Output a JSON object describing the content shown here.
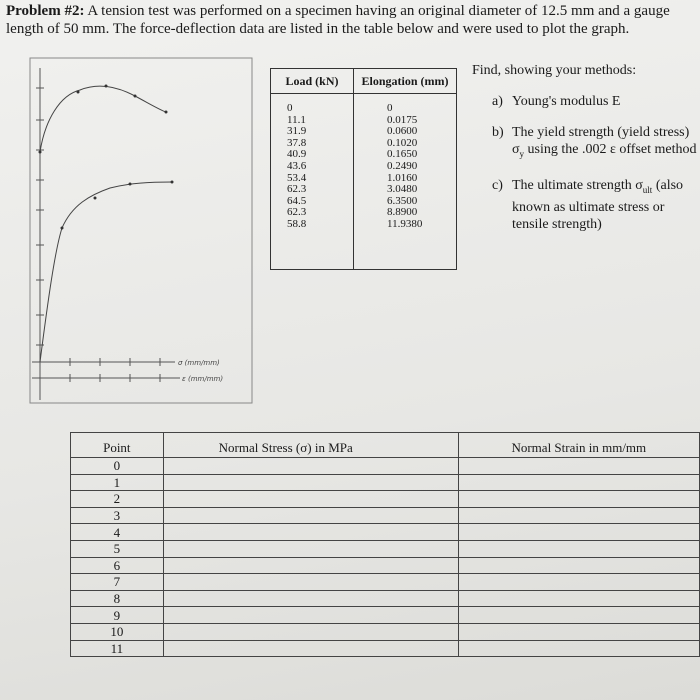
{
  "problem": {
    "label": "Problem #2:",
    "text": "A tension test was performed on a specimen having an original diameter of 12.5 mm and a gauge length of 50 mm. The force-deflection data are listed in the table below and were used to plot the graph."
  },
  "graph": {
    "notes": [
      "σ (mm/mm)",
      "ε (mm/mm)"
    ]
  },
  "data_table": {
    "headers": [
      "Load (kN)",
      "Elongation (mm)"
    ],
    "load": [
      "0",
      "11.1",
      "31.9",
      "37.8",
      "40.9",
      "43.6",
      "53.4",
      "62.3",
      "64.5",
      "62.3",
      "58.8"
    ],
    "elongation": [
      "0",
      "0.0175",
      "0.0600",
      "0.1020",
      "0.1650",
      "0.2490",
      "1.0160",
      "3.0480",
      "6.3500",
      "8.8900",
      "11.9380"
    ]
  },
  "questions": {
    "intro": "Find, showing your methods:",
    "items": [
      {
        "label": "a)",
        "before": "Young's modulus E",
        "sub": "",
        "after": ""
      },
      {
        "label": "b)",
        "before": "The yield strength (yield stress) σ",
        "sub": "y",
        "after": " using the .002 ε offset method"
      },
      {
        "label": "c)",
        "before": "The ultimate strength σ",
        "sub": "ult",
        "after": " (also known as ultimate stress or tensile strength)"
      }
    ]
  },
  "answer_table": {
    "headers": [
      "Point",
      "Normal Stress (σ) in MPa",
      "Normal Strain in mm/mm"
    ],
    "points": [
      "0",
      "1",
      "2",
      "3",
      "4",
      "5",
      "6",
      "7",
      "8",
      "9",
      "10",
      "11"
    ]
  }
}
